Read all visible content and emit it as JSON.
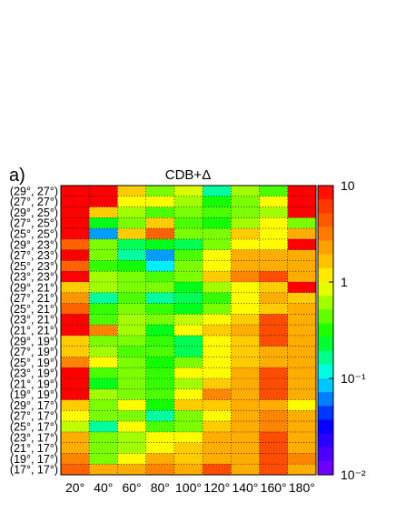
{
  "panel_label": "a)",
  "chart_data": {
    "type": "heatmap",
    "title": "CDB+Δ",
    "xlabel": "",
    "ylabel": "",
    "x_tick_labels": [
      "20°",
      "40°",
      "60°",
      "80°",
      "100°",
      "120°",
      "140°",
      "160°",
      "180°"
    ],
    "y_tick_labels": [
      "(29°, 27°)",
      "(27°, 27°)",
      "(29°, 25°)",
      "(27°, 25°)",
      "(25°, 25°)",
      "(29°, 23°)",
      "(27°, 23°)",
      "(25°, 23°)",
      "(23°, 23°)",
      "(29°, 21°)",
      "(27°, 21°)",
      "(25°, 21°)",
      "(23°, 21°)",
      "(21°, 21°)",
      "(29°, 19°)",
      "(27°, 19°)",
      "(25°, 19°)",
      "(23°, 19°)",
      "(21°, 19°)",
      "(19°, 19°)",
      "(29°, 17°)",
      "(27°, 17°)",
      "(25°, 17°)",
      "(23°, 17°)",
      "(21°, 17°)",
      "(19°, 17°)",
      "(17°, 17°)"
    ],
    "color_scale": "log",
    "zlim": [
      0.01,
      10
    ],
    "colorbar_tick_labels": [
      "10",
      "1",
      "10⁻¹",
      "10⁻²"
    ],
    "grid": true,
    "values": [
      [
        10,
        10,
        1.5,
        0.5,
        0.8,
        0.15,
        0.6,
        0.4,
        10
      ],
      [
        10,
        10,
        1.0,
        1.0,
        0.6,
        0.3,
        0.5,
        1.0,
        10
      ],
      [
        10,
        1.5,
        0.6,
        0.4,
        0.5,
        0.4,
        0.5,
        0.6,
        10
      ],
      [
        10,
        0.25,
        0.5,
        1.5,
        0.4,
        0.3,
        0.6,
        1.0,
        0.5
      ],
      [
        10,
        0.07,
        1.5,
        4,
        0.5,
        0.5,
        1.5,
        1.0,
        2
      ],
      [
        4,
        0.5,
        0.2,
        0.25,
        0.2,
        0.5,
        1.0,
        1.0,
        10
      ],
      [
        10,
        0.5,
        0.15,
        0.07,
        0.4,
        1.0,
        2,
        2,
        2
      ],
      [
        4,
        0.35,
        0.3,
        0.1,
        0.5,
        1.0,
        2,
        2,
        2
      ],
      [
        10,
        0.6,
        0.5,
        0.4,
        0.5,
        1.5,
        3,
        5,
        2
      ],
      [
        1.5,
        0.6,
        0.5,
        0.5,
        0.25,
        0.6,
        1.0,
        1.5,
        10
      ],
      [
        2.5,
        0.15,
        0.4,
        0.15,
        0.2,
        0.35,
        1.0,
        2,
        1.5
      ],
      [
        4,
        0.35,
        0.5,
        0.35,
        0.25,
        0.5,
        1.0,
        1.5,
        2
      ],
      [
        10,
        0.4,
        0.6,
        0.5,
        0.7,
        1.0,
        1.5,
        5,
        2
      ],
      [
        10,
        3,
        0.6,
        0.25,
        1.0,
        1.5,
        2,
        5,
        2
      ],
      [
        1.5,
        0.5,
        0.5,
        0.35,
        0.2,
        1.0,
        1.5,
        5,
        2
      ],
      [
        1.5,
        0.6,
        0.4,
        0.4,
        0.2,
        1.0,
        1.5,
        2,
        2
      ],
      [
        3,
        1.0,
        0.5,
        0.3,
        0.5,
        1.0,
        1.5,
        2,
        2
      ],
      [
        10,
        0.4,
        0.5,
        0.35,
        1.0,
        1.0,
        2,
        5,
        2
      ],
      [
        10,
        0.25,
        0.5,
        0.35,
        0.6,
        1.5,
        2,
        5,
        2
      ],
      [
        10,
        0.6,
        0.5,
        0.4,
        1.0,
        3,
        2,
        5,
        2
      ],
      [
        1.5,
        0.5,
        1.0,
        0.3,
        1.5,
        1.5,
        2,
        2,
        1.0
      ],
      [
        1.0,
        0.5,
        0.5,
        0.15,
        0.5,
        1.0,
        2,
        3,
        2
      ],
      [
        0.7,
        0.15,
        1.0,
        0.4,
        0.5,
        1.5,
        2,
        3,
        2
      ],
      [
        2,
        0.5,
        0.6,
        1.0,
        1.0,
        2,
        2,
        5,
        2
      ],
      [
        2,
        0.5,
        0.6,
        1.0,
        1.5,
        2,
        2,
        5,
        2
      ],
      [
        3,
        0.5,
        1.0,
        2,
        1.5,
        2,
        2,
        5,
        3
      ],
      [
        4,
        2,
        2,
        3,
        2,
        5,
        2,
        5,
        2
      ]
    ]
  }
}
